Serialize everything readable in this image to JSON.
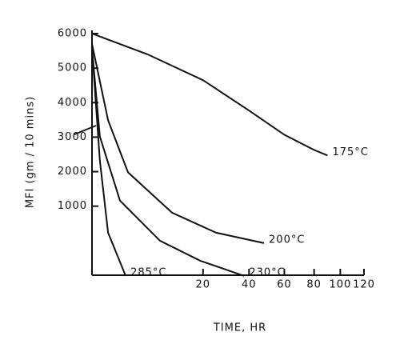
{
  "chart_data": {
    "type": "line",
    "x_label": "TIME, HR",
    "y_label": "MFI (gm / 10 mins)",
    "xscale": "sqrt",
    "xlim": [
      0,
      120
    ],
    "ylim": [
      -1000,
      6000
    ],
    "xticks": [
      20,
      40,
      60,
      80,
      100,
      120
    ],
    "yticks": [
      1000,
      2000,
      3000,
      4000,
      5000,
      6000
    ],
    "color": "#111111",
    "series": [
      {
        "name": "175°C",
        "color": "#111111",
        "x": [
          0,
          5,
          20,
          40,
          60,
          80,
          90
        ],
        "values": [
          6000,
          5400,
          4650,
          3770,
          3070,
          2630,
          2470
        ]
      },
      {
        "name": "200°C",
        "color": "#111111",
        "x": [
          0,
          0.42,
          2.1,
          10.4,
          25,
          48
        ],
        "values": [
          5700,
          3490,
          1980,
          810,
          230,
          -70
        ]
      },
      {
        "name": "230°C",
        "color": "#111111",
        "x": [
          0,
          0.1,
          1.27,
          7.5,
          19,
          37.6
        ],
        "values": [
          5580,
          3020,
          1160,
          0,
          -580,
          -1020
        ]
      },
      {
        "name": "285°C",
        "color": "#111111",
        "x": [
          0,
          0.1,
          0.42,
          1.84
        ],
        "values": [
          5580,
          2330,
          230,
          -1020
        ]
      }
    ]
  }
}
